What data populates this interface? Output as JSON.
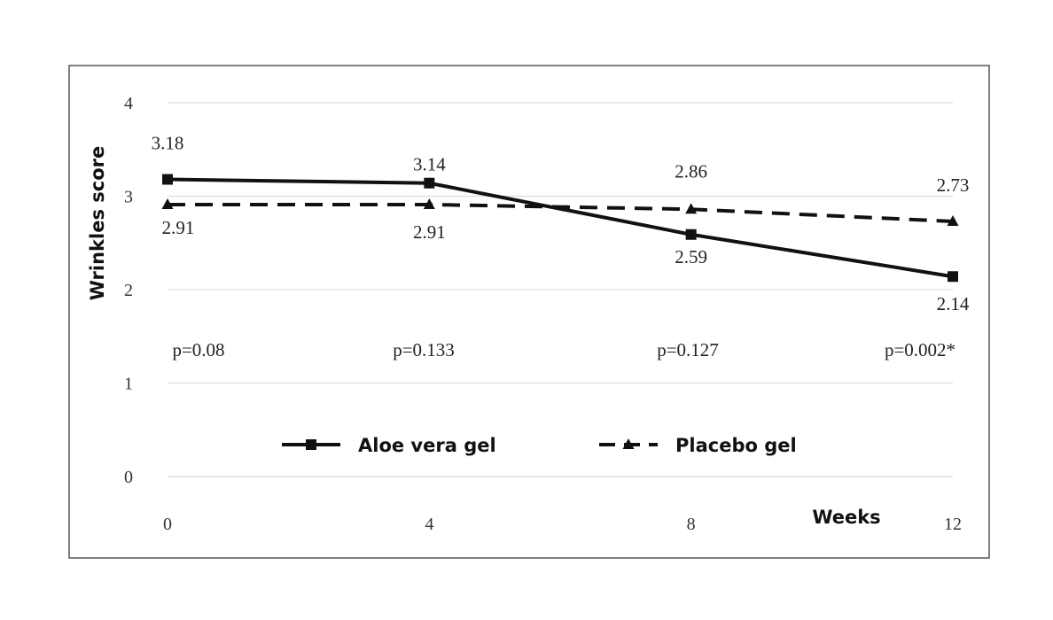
{
  "chart_data": {
    "type": "line",
    "title": "",
    "xlabel": "Weeks",
    "ylabel": "Wrinkles score",
    "x": [
      0,
      4,
      8,
      12
    ],
    "x_tick_labels": [
      "0",
      "4",
      "8",
      "12"
    ],
    "ylim": [
      0,
      4
    ],
    "y_ticks": [
      0,
      1,
      2,
      3,
      4
    ],
    "y_tick_labels": [
      "0",
      "1",
      "2",
      "3",
      "4"
    ],
    "grid": "horizontal",
    "legend_position": "bottom-center",
    "series": [
      {
        "name": "Aloe vera gel",
        "values": [
          3.18,
          3.14,
          2.59,
          2.14
        ],
        "data_labels": [
          "3.18",
          "3.14",
          "2.59",
          "2.14"
        ],
        "line_style": "solid",
        "marker": "square",
        "color": "#111111"
      },
      {
        "name": "Placebo gel",
        "values": [
          2.91,
          2.91,
          2.86,
          2.73
        ],
        "data_labels": [
          "2.91",
          "2.91",
          "2.86",
          "2.73"
        ],
        "line_style": "dashed",
        "marker": "triangle",
        "color": "#111111"
      }
    ],
    "annotations": [
      "p=0.08",
      "p=0.133",
      "p=0.127",
      "p=0.002*"
    ]
  }
}
